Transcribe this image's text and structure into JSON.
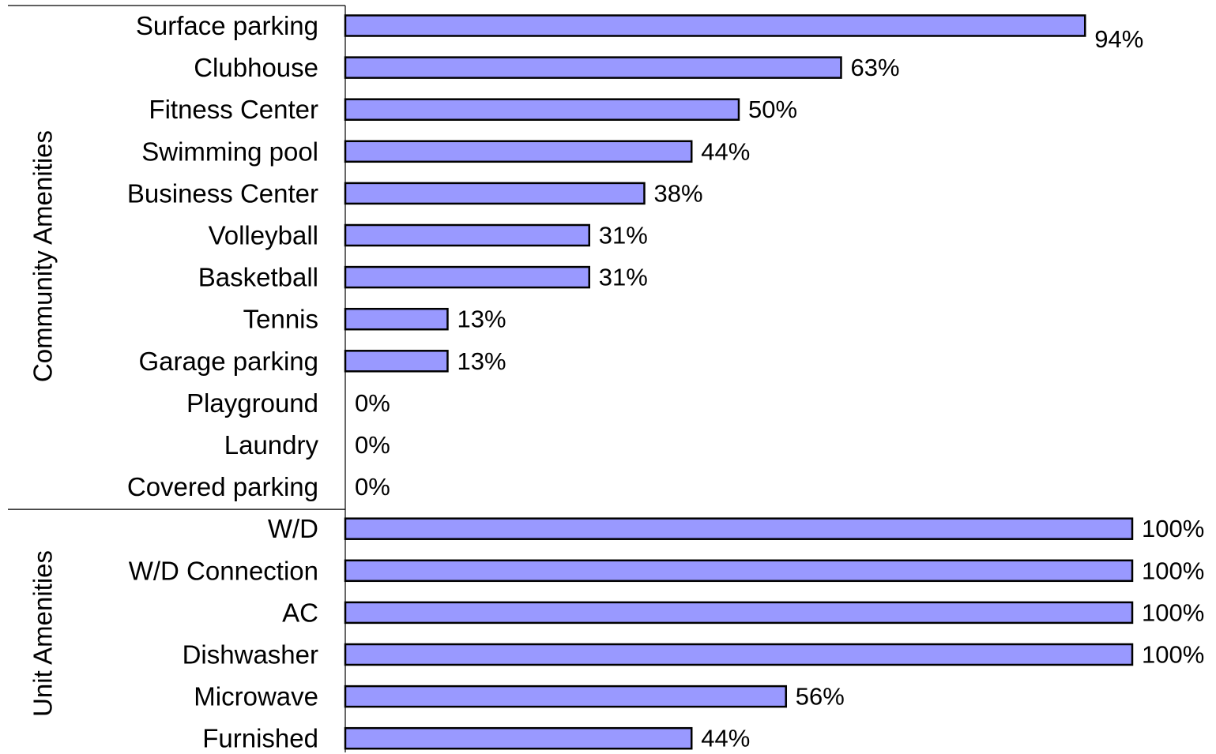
{
  "chart_data": {
    "type": "bar",
    "orientation": "horizontal",
    "title": "",
    "xlabel": "",
    "ylabel": "",
    "xlim": [
      0,
      100
    ],
    "bar_color": "#9999ff",
    "bar_edge_color": "#000000",
    "value_suffix": "%",
    "groups": [
      {
        "name": "Community Amenities",
        "categories": [
          "Surface parking",
          "Clubhouse",
          "Fitness Center",
          "Swimming pool",
          "Business Center",
          "Volleyball",
          "Basketball",
          "Tennis",
          "Garage parking",
          "Playground",
          "Laundry",
          "Covered parking"
        ],
        "values": [
          94,
          63,
          50,
          44,
          38,
          31,
          31,
          13,
          13,
          0,
          0,
          0
        ]
      },
      {
        "name": "Unit Amenities",
        "categories": [
          "W/D",
          "W/D Connection",
          "AC",
          "Dishwasher",
          "Microwave",
          "Furnished"
        ],
        "values": [
          100,
          100,
          100,
          100,
          56,
          44
        ]
      }
    ]
  }
}
